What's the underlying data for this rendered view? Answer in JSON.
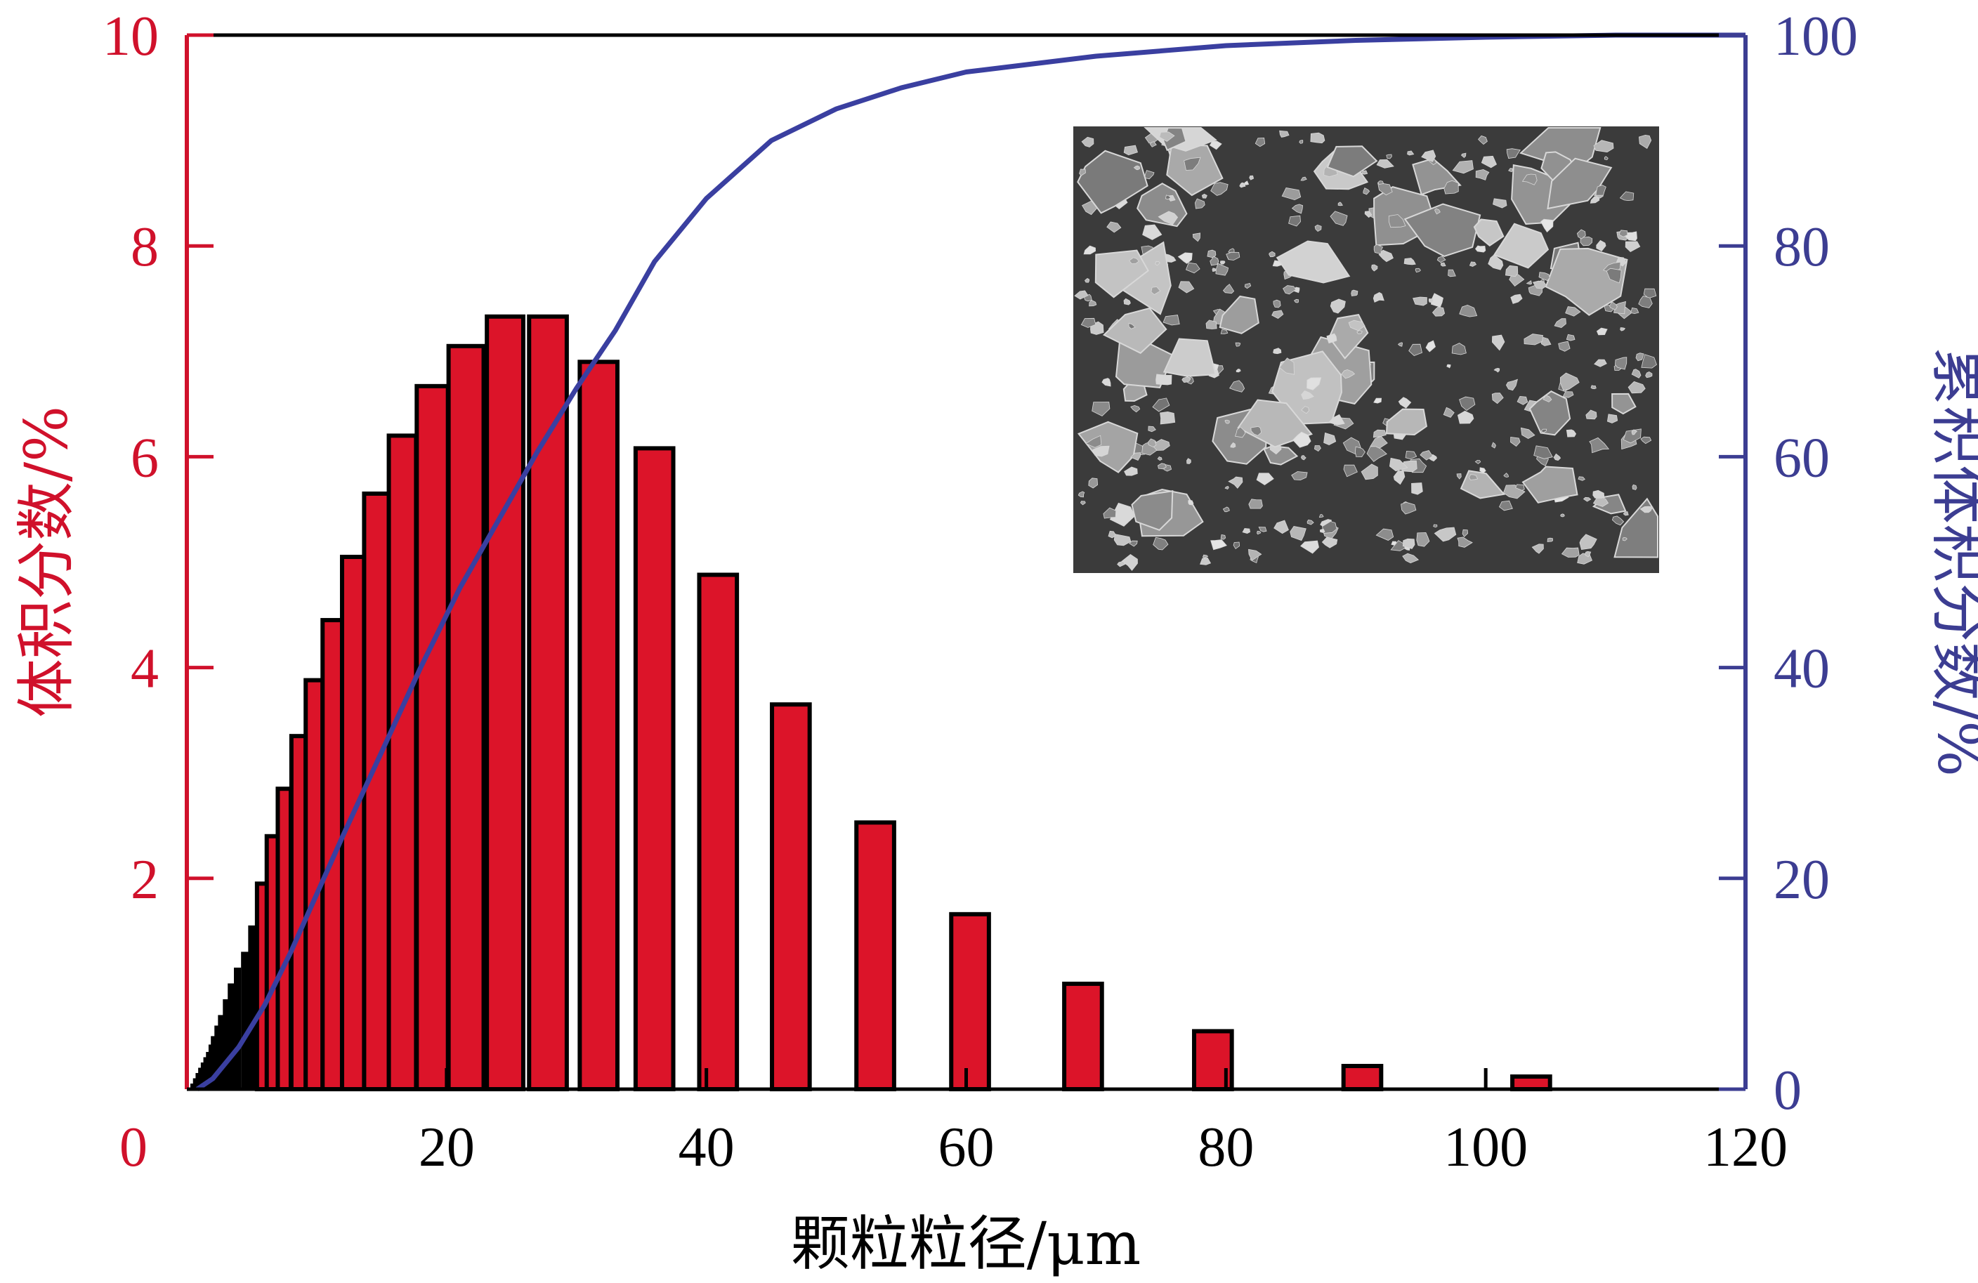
{
  "chart_data": {
    "type": "bar",
    "xlabel": "颗粒粒径/μm",
    "ylabel_left": "体积分数/%",
    "ylabel_right": "累积体积分数/%",
    "xlim": [
      0,
      120
    ],
    "ylim_left": [
      0,
      10
    ],
    "ylim_right": [
      0,
      100
    ],
    "x_ticks": [
      "0",
      "20",
      "40",
      "60",
      "80",
      "100",
      "120"
    ],
    "y_left_ticks": [
      "2",
      "4",
      "6",
      "8",
      "10"
    ],
    "y_right_ticks": [
      "0",
      "20",
      "40",
      "60",
      "80",
      "100"
    ],
    "colors": {
      "left_axis": "#d0112b",
      "right_axis": "#3c3d92",
      "bar_fill": "#dc1429",
      "bar_edge": "#000000",
      "curve": "#3a3fa0"
    },
    "grid": false,
    "legend": "none",
    "inset": "SEM micrograph (top-right)",
    "series": [
      {
        "axis": "left",
        "kind": "bar",
        "x": [
          0.4,
          0.6,
          0.8,
          1.0,
          1.2,
          1.4,
          1.6,
          1.8,
          2.0,
          2.3,
          2.6,
          3.0,
          3.4,
          3.9,
          4.5,
          5.1,
          5.8,
          6.6,
          7.5,
          8.6,
          9.8,
          11.2,
          12.8,
          14.6,
          16.6,
          18.9,
          21.5,
          24.5,
          27.8,
          31.7,
          36.0,
          40.9,
          46.5,
          53.0,
          60.3,
          69.0,
          79.0,
          90.5,
          103.5
        ],
        "widths": [
          0.2,
          0.2,
          0.2,
          0.2,
          0.2,
          0.2,
          0.2,
          0.2,
          0.25,
          0.3,
          0.35,
          0.4,
          0.45,
          0.5,
          0.6,
          0.7,
          0.8,
          0.9,
          1.0,
          1.1,
          1.3,
          1.5,
          1.7,
          1.9,
          2.1,
          2.4,
          2.7,
          2.8,
          2.9,
          2.9,
          2.9,
          2.9,
          2.9,
          2.9,
          2.9,
          2.9,
          2.9,
          2.9,
          2.9
        ],
        "values": [
          0.05,
          0.1,
          0.15,
          0.2,
          0.25,
          0.3,
          0.35,
          0.42,
          0.5,
          0.6,
          0.7,
          0.85,
          1.0,
          1.15,
          1.3,
          1.55,
          1.95,
          2.4,
          2.85,
          3.35,
          3.88,
          4.45,
          5.05,
          5.65,
          6.2,
          6.67,
          7.05,
          7.33,
          7.33,
          6.9,
          6.08,
          4.88,
          3.65,
          2.53,
          1.66,
          1.0,
          0.55,
          0.22,
          0.12
        ]
      },
      {
        "axis": "right",
        "kind": "line",
        "x": [
          0.8,
          2,
          3,
          4,
          6,
          8,
          10,
          12,
          15,
          18,
          21,
          24,
          27,
          30,
          33,
          36,
          40,
          45,
          50,
          55,
          60,
          70,
          80,
          90,
          100,
          110,
          120
        ],
        "values": [
          0,
          1,
          2.5,
          4,
          8,
          13,
          18.5,
          24,
          32,
          40,
          47.5,
          54,
          60.5,
          66.5,
          72,
          78.5,
          84.5,
          90,
          93,
          95,
          96.5,
          98,
          99,
          99.5,
          99.8,
          100,
          100
        ]
      }
    ]
  }
}
